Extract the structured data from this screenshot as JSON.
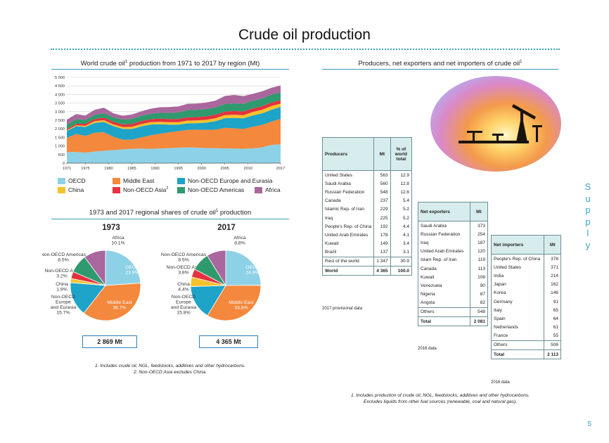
{
  "page_title": "Crude oil production",
  "side_label": [
    "S",
    "u",
    "p",
    "p",
    "l",
    "y"
  ],
  "page_number": "5",
  "left_chart": {
    "title": "World crude oil",
    "title_sup": "1",
    "title_rest": "production from 1971 to 2017 by region (Mt)"
  },
  "right_section": {
    "title": "Producers, net exporters and net importers of crude oil",
    "title_sup": "1"
  },
  "legend": [
    {
      "label": "OECD",
      "color": "#8dd1e6"
    },
    {
      "label": "Middle East",
      "color": "#f4883c"
    },
    {
      "label": "Non-OECD Europe and Eurasia",
      "color": "#1ea3c9"
    },
    {
      "label": "China",
      "color": "#f6c22c"
    },
    {
      "label": "Non-OECD Asia",
      "sup": "2",
      "color": "#e5323e"
    },
    {
      "label": "Non-OECD Americas",
      "color": "#2f9a6e"
    },
    {
      "label": "Africa",
      "color": "#a9679d"
    }
  ],
  "chart_data": [
    {
      "type": "area",
      "title": "World crude oil production from 1971 to 2017 by region (Mt)",
      "x": [
        1971,
        1973,
        1975,
        1977,
        1979,
        1981,
        1983,
        1985,
        1987,
        1989,
        1991,
        1993,
        1995,
        1997,
        1999,
        2001,
        2003,
        2005,
        2007,
        2009,
        2011,
        2013,
        2015,
        2017
      ],
      "x_ticks": [
        "1971",
        "1975",
        "1980",
        "1985",
        "1990",
        "1995",
        "2000",
        "2005",
        "2010",
        "2017"
      ],
      "y_ticks": [
        "0",
        "500",
        "1 000",
        "1 500",
        "2 000",
        "2 500",
        "3 000",
        "3 500",
        "4 000",
        "4 500",
        "5 000"
      ],
      "ylim": [
        0,
        5000
      ],
      "grid": true,
      "series": [
        {
          "name": "OECD",
          "color": "#8dd1e6",
          "values": [
            640,
            650,
            610,
            680,
            720,
            760,
            800,
            840,
            850,
            830,
            860,
            870,
            900,
            920,
            900,
            880,
            870,
            860,
            850,
            840,
            860,
            920,
            1060,
            1100
          ]
        },
        {
          "name": "Middle East",
          "color": "#f4883c",
          "values": [
            830,
            1050,
            980,
            1100,
            1080,
            780,
            570,
            530,
            650,
            790,
            850,
            930,
            970,
            1020,
            1050,
            1060,
            1080,
            1200,
            1180,
            1150,
            1260,
            1310,
            1360,
            1480
          ]
        },
        {
          "name": "Non-OECD Europe and Eurasia",
          "color": "#1ea3c9",
          "values": [
            400,
            450,
            520,
            570,
            600,
            620,
            630,
            620,
            640,
            630,
            560,
            440,
            370,
            380,
            380,
            420,
            500,
            560,
            610,
            620,
            660,
            670,
            690,
            700
          ]
        },
        {
          "name": "China",
          "color": "#f6c22c",
          "values": [
            40,
            55,
            75,
            95,
            105,
            100,
            105,
            125,
            135,
            138,
            140,
            145,
            150,
            160,
            160,
            165,
            170,
            180,
            185,
            190,
            200,
            210,
            215,
            190
          ]
        },
        {
          "name": "Non-OECD Asia",
          "sup": "2",
          "color": "#e5323e",
          "values": [
            75,
            90,
            110,
            125,
            145,
            150,
            155,
            165,
            170,
            175,
            180,
            180,
            185,
            190,
            195,
            200,
            205,
            205,
            210,
            210,
            205,
            205,
            205,
            200
          ]
        },
        {
          "name": "Non-OECD Americas",
          "color": "#2f9a6e",
          "values": [
            260,
            270,
            230,
            240,
            255,
            265,
            275,
            300,
            310,
            320,
            340,
            360,
            380,
            420,
            420,
            430,
            420,
            450,
            450,
            440,
            450,
            450,
            460,
            450
          ]
        },
        {
          "name": "Africa",
          "color": "#a9679d",
          "values": [
            290,
            290,
            250,
            300,
            330,
            230,
            230,
            250,
            260,
            290,
            330,
            340,
            350,
            370,
            370,
            380,
            400,
            460,
            490,
            460,
            400,
            420,
            400,
            410
          ]
        }
      ]
    },
    {
      "type": "pie",
      "title": "1973",
      "total": "2 869 Mt",
      "slices": [
        {
          "name": "OECD",
          "value": 23.9,
          "label": "OECD",
          "pct": "23.9%",
          "color": "#8dd1e6"
        },
        {
          "name": "Middle East",
          "value": 36.7,
          "label": "Middle East",
          "pct": "36.7%",
          "color": "#f4883c"
        },
        {
          "name": "Non-OECD Europe and Eurasia",
          "value": 15.7,
          "label": "Non-OECD Europe and Eurasia",
          "pct": "15.7%",
          "color": "#1ea3c9"
        },
        {
          "name": "China",
          "value": 1.9,
          "label": "China",
          "pct": "1.9%",
          "color": "#f6c22c"
        },
        {
          "name": "Non-OECD Asia",
          "value": 3.2,
          "label": "Non-OECD Asia",
          "pct": "3.2%",
          "color": "#e5323e"
        },
        {
          "name": "Non-OECD Americas",
          "value": 8.5,
          "label": "Non-OECD Americas",
          "pct": "8.5%",
          "color": "#2f9a6e"
        },
        {
          "name": "Africa",
          "value": 10.1,
          "label": "Africa",
          "pct": "10.1%",
          "color": "#a9679d"
        }
      ]
    },
    {
      "type": "pie",
      "title": "2017",
      "total": "4 365 Mt",
      "slices": [
        {
          "name": "OECD",
          "value": 24.9,
          "label": "OECD",
          "pct": "24.9%",
          "color": "#8dd1e6"
        },
        {
          "name": "Middle East",
          "value": 33.8,
          "label": "Middle East",
          "pct": "33.8%",
          "color": "#f4883c"
        },
        {
          "name": "Non-OECD Europe and Eurasia",
          "value": 15.8,
          "label": "Non-OECD Europe and Eurasia",
          "pct": "15.8%",
          "color": "#1ea3c9"
        },
        {
          "name": "China",
          "value": 4.4,
          "label": "China",
          "pct": "4.4%",
          "color": "#f6c22c"
        },
        {
          "name": "Non-OECD Asia",
          "value": 3.8,
          "label": "Non-OECD Asia",
          "pct": "3.8%",
          "color": "#e5323e"
        },
        {
          "name": "Non-OECD Americas",
          "value": 8.5,
          "label": "Non-OECD Americas",
          "pct": "8.5%",
          "color": "#2f9a6e"
        },
        {
          "name": "Africa",
          "value": 8.8,
          "label": "Africa",
          "pct": "8.8%",
          "color": "#a9679d"
        }
      ]
    }
  ],
  "shares": {
    "title": "1973 and 2017 regional shares of crude oil",
    "title_sup": "1",
    "title_rest": "production"
  },
  "left_notes": [
    "1. Includes crude oil, NGL, feedstocks, additives and other hydrocarbons.",
    "2. Non-OECD Asia excludes China."
  ],
  "right_notes": [
    "1. Includes production of crude oil, NGL, feedstocks, additives and other hydrocarbons.",
    "Excludes liquids from other fuel sources (renewable, coal and natural gas)."
  ],
  "producers": {
    "headers": [
      "Producers",
      "Mt",
      "% of world total"
    ],
    "rows": [
      [
        "United States",
        "563",
        "12.9"
      ],
      [
        "Saudi Arabia",
        "560",
        "12.8"
      ],
      [
        "Russian Federation",
        "548",
        "12.6"
      ],
      [
        "Canada",
        "237",
        "5.4"
      ],
      [
        "Islamic Rep. of Iran",
        "229",
        "5.2"
      ],
      [
        "Iraq",
        "225",
        "5.2"
      ],
      [
        "People's Rep. of China",
        "192",
        "4.4"
      ],
      [
        "United Arab Emirates",
        "178",
        "4.1"
      ],
      [
        "Kuwait",
        "149",
        "3.4"
      ],
      [
        "Brazil",
        "137",
        "3.1"
      ]
    ],
    "rest": [
      "Rest of the world",
      "1 347",
      "30.9"
    ],
    "world": [
      "World",
      "4 365",
      "100.0"
    ],
    "note": "2017 provisional data"
  },
  "exporters": {
    "headers": [
      "Net exporters",
      "Mt"
    ],
    "rows": [
      [
        "Saudi Arabia",
        "373"
      ],
      [
        "Russian Federation",
        "254"
      ],
      [
        "Iraq",
        "187"
      ],
      [
        "United Arab Emirates",
        "120"
      ],
      [
        "Islam Rep. of Iran",
        "119"
      ],
      [
        "Canada",
        "113"
      ],
      [
        "Kuwait",
        "108"
      ],
      [
        "Venezuela",
        "90"
      ],
      [
        "Nigeria",
        "87"
      ],
      [
        "Angola",
        "82"
      ]
    ],
    "others": [
      "Others",
      "548"
    ],
    "total": [
      "Total",
      "2 081"
    ],
    "note": "2016 data"
  },
  "importers": {
    "headers": [
      "Net importers",
      "Mt"
    ],
    "rows": [
      [
        "People's Rep. of China",
        "378"
      ],
      [
        "United States",
        "371"
      ],
      [
        "India",
        "214"
      ],
      [
        "Japan",
        "162"
      ],
      [
        "Korea",
        "146"
      ],
      [
        "Germany",
        "91"
      ],
      [
        "Italy",
        "65"
      ],
      [
        "Spain",
        "64"
      ],
      [
        "Netherlands",
        "61"
      ],
      [
        "France",
        "55"
      ]
    ],
    "others": [
      "Others",
      "506"
    ],
    "total": [
      "Total",
      "2 113"
    ],
    "note": "2016 data"
  }
}
